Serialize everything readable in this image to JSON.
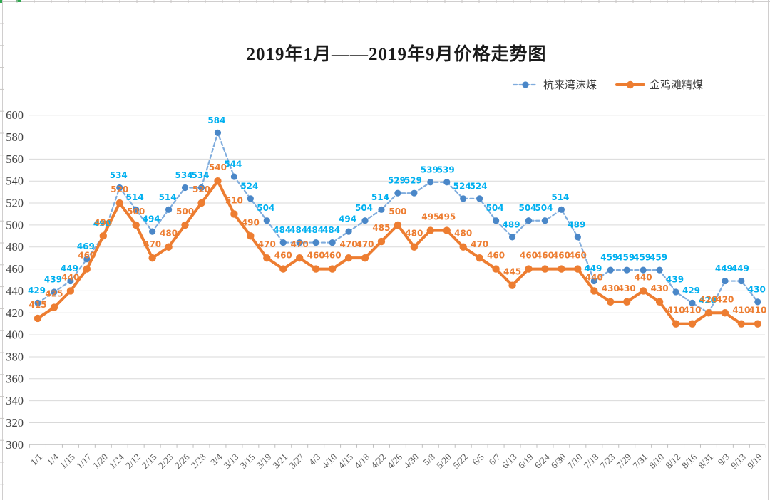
{
  "chart_data": {
    "type": "line",
    "title": "2019年1月——2019年9月价格走势图",
    "categories": [
      "1/1",
      "1/4",
      "1/15",
      "1/17",
      "1/20",
      "1/24",
      "2/12",
      "2/15",
      "2/23",
      "2/26",
      "2/28",
      "3/4",
      "3/13",
      "3/15",
      "3/19",
      "3/21",
      "3/27",
      "4/3",
      "4/10",
      "4/15",
      "4/18",
      "4/22",
      "4/26",
      "4/30",
      "5/8",
      "5/20",
      "5/22",
      "6/5",
      "6/7",
      "6/13",
      "6/19",
      "6/24",
      "6/30",
      "7/10",
      "7/18",
      "7/23",
      "7/29",
      "7/31",
      "8/10",
      "8/12",
      "8/16",
      "8/31",
      "9/3",
      "9/13",
      "9/19"
    ],
    "series": [
      {
        "name": "杭来湾沫煤",
        "style": "dashed",
        "line_color": "#7facdd",
        "marker_color": "#4a87c8",
        "label_color": "#00b0f0",
        "values": [
          429,
          439,
          449,
          469,
          490,
          534,
          514,
          494,
          514,
          534,
          534,
          584,
          544,
          524,
          504,
          484,
          484,
          484,
          484,
          494,
          504,
          514,
          529,
          529,
          539,
          539,
          524,
          524,
          504,
          489,
          504,
          504,
          514,
          489,
          449,
          459,
          459,
          459,
          459,
          439,
          429,
          420,
          449,
          449,
          430
        ]
      },
      {
        "name": "金鸡滩精煤",
        "style": "solid",
        "line_color": "#ed7d31",
        "marker_color": "#ed7d31",
        "label_color": "#ed7d31",
        "values": [
          415,
          425,
          440,
          460,
          490,
          520,
          500,
          470,
          480,
          500,
          520,
          540,
          510,
          490,
          470,
          460,
          470,
          460,
          460,
          470,
          470,
          485,
          500,
          480,
          495,
          495,
          480,
          470,
          460,
          445,
          460,
          460,
          460,
          460,
          440,
          430,
          430,
          440,
          430,
          410,
          410,
          420,
          420,
          410,
          410
        ]
      }
    ],
    "ylim": [
      300,
      600
    ],
    "y_tick_step": 20,
    "y_tick_labels": [
      "300",
      "320",
      "340",
      "360",
      "380",
      "400",
      "420",
      "440",
      "460",
      "480",
      "500",
      "520",
      "540",
      "560",
      "580",
      "600"
    ],
    "grid": "horizontal",
    "gridline_color": "#d9d9d9",
    "axis_color": "#bfbfbf",
    "axis_label_color": "#404040",
    "x_label_color": "#595959",
    "legend_position": "top-right",
    "data_labels": true
  }
}
